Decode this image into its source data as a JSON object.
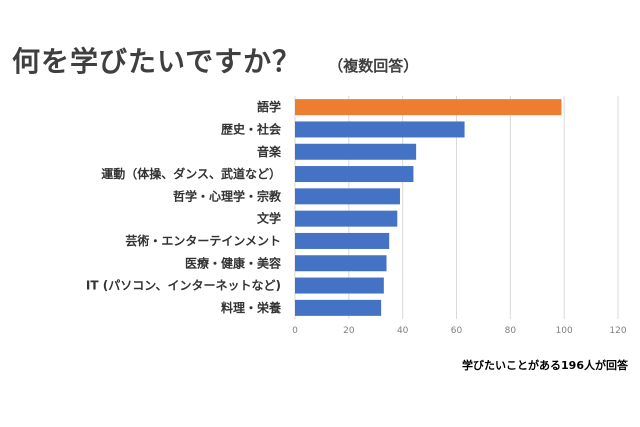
{
  "header": {
    "title": "何を学びたいですか？",
    "subtitle": "（複数回答）"
  },
  "footnote": "学びたいことがある196人が回答",
  "colors": {
    "highlight": "#ed7d31",
    "bar": "#4472c4",
    "grid": "#d9d9d9"
  },
  "chart_data": {
    "type": "bar",
    "orientation": "horizontal",
    "categories": [
      "語学",
      "歴史・社会",
      "音楽",
      "運動（体操、ダンス、武道など）",
      "哲学・心理学・宗教",
      "文学",
      "芸術・エンターテインメント",
      "医療・健康・美容",
      "IT (パソコン、インターネットなど)",
      "料理・栄養"
    ],
    "values": [
      99,
      63,
      45,
      44,
      39,
      38,
      35,
      34,
      33,
      32
    ],
    "highlight_index": 0,
    "xlim": [
      0,
      120
    ],
    "xticks": [
      0,
      20,
      40,
      60,
      80,
      100,
      120
    ],
    "grid": true
  }
}
